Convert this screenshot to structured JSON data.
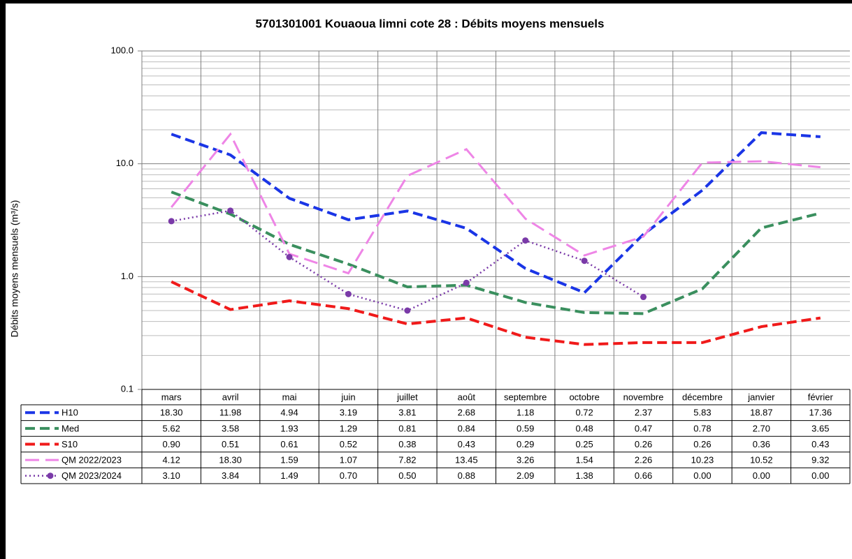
{
  "chart_data": {
    "type": "line",
    "title": "5701301001 Kouaoua limni cote 28 : Débits moyens mensuels",
    "y_label": "Débits moyens mensuels (m³/s)",
    "categories": [
      "mars",
      "avril",
      "mai",
      "juin",
      "juillet",
      "août",
      "septembre",
      "octobre",
      "novembre",
      "décembre",
      "janvier",
      "février"
    ],
    "log_y": true,
    "grid": true,
    "ylim": [
      0.1,
      100
    ],
    "yticks": [
      0.1,
      {
        "value": 1,
        "label": "1.0"
      },
      {
        "value": 10,
        "label": "10.0"
      },
      {
        "value": 100,
        "label": "100.0"
      }
    ],
    "series": [
      {
        "name": "H10",
        "color": "#1a35e6",
        "values": [
          18.3,
          11.98,
          4.94,
          3.19,
          3.81,
          2.68,
          1.18,
          0.72,
          2.37,
          5.83,
          18.87,
          17.36
        ],
        "value_labels": [
          "18.30",
          "11.98",
          "4.94",
          "3.19",
          "3.81",
          "2.68",
          "1.18",
          "0.72",
          "2.37",
          "5.83",
          "18.87",
          "17.36"
        ]
      },
      {
        "name": "Med",
        "color": "#3a8f5e",
        "values": [
          5.62,
          3.58,
          1.93,
          1.29,
          0.81,
          0.84,
          0.59,
          0.48,
          0.47,
          0.78,
          2.7,
          3.65
        ],
        "value_labels": [
          "5.62",
          "3.58",
          "1.93",
          "1.29",
          "0.81",
          "0.84",
          "0.59",
          "0.48",
          "0.47",
          "0.78",
          "2.70",
          "3.65"
        ]
      },
      {
        "name": "S10",
        "color": "#f01a1a",
        "values": [
          0.9,
          0.51,
          0.61,
          0.52,
          0.38,
          0.43,
          0.29,
          0.25,
          0.26,
          0.26,
          0.36,
          0.43
        ],
        "value_labels": [
          "0.90",
          "0.51",
          "0.61",
          "0.52",
          "0.38",
          "0.43",
          "0.29",
          "0.25",
          "0.26",
          "0.26",
          "0.36",
          "0.43"
        ]
      },
      {
        "name": "QM 2022/2023",
        "color": "#ee85e6",
        "values": [
          4.12,
          18.3,
          1.59,
          1.07,
          7.82,
          13.45,
          3.26,
          1.54,
          2.26,
          10.23,
          10.52,
          9.32
        ],
        "value_labels": [
          "4.12",
          "18.30",
          "1.59",
          "1.07",
          "7.82",
          "13.45",
          "3.26",
          "1.54",
          "2.26",
          "10.23",
          "10.52",
          "9.32"
        ]
      },
      {
        "name": "QM 2023/2024",
        "color": "#7a3aa8",
        "marker": "circle",
        "values": [
          3.1,
          3.84,
          1.49,
          0.7,
          0.5,
          0.88,
          2.09,
          1.38,
          0.66,
          0,
          0,
          0
        ],
        "value_labels": [
          "3.10",
          "3.84",
          "1.49",
          "0.70",
          "0.50",
          "0.88",
          "2.09",
          "1.38",
          "0.66",
          "0.00",
          "0.00",
          "0.00"
        ]
      }
    ]
  }
}
